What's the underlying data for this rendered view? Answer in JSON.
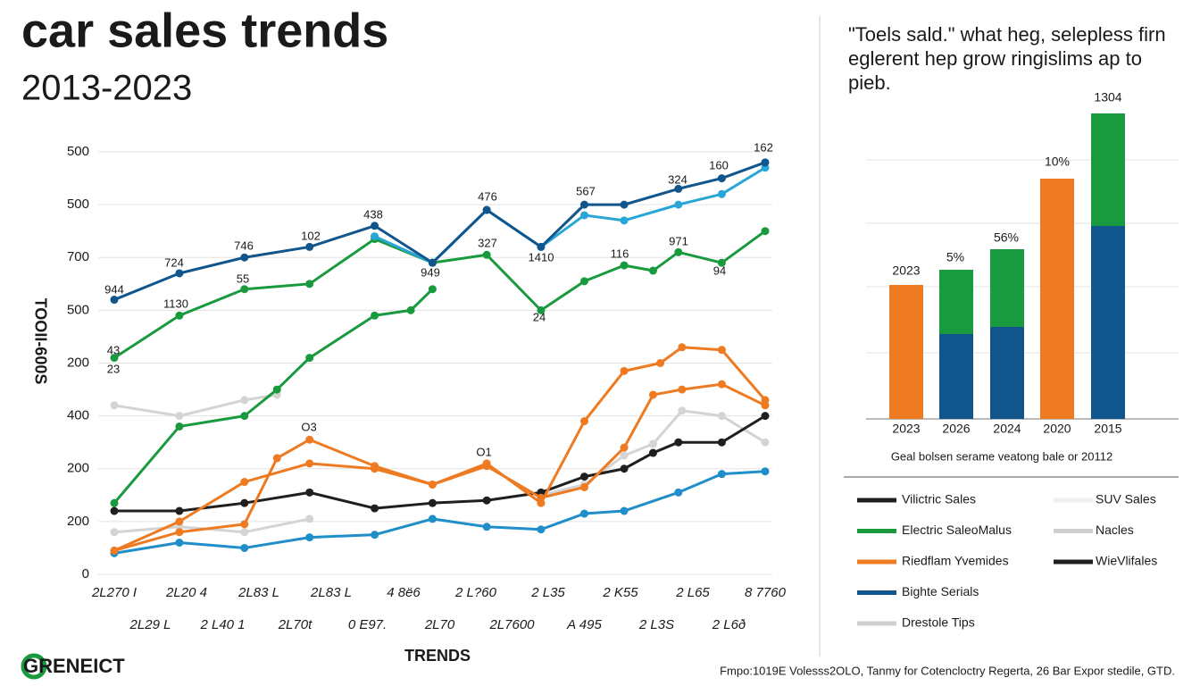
{
  "chart_data": [
    {
      "type": "line",
      "title": "car sales trends",
      "subtitle": "2013-2023",
      "xlabel": "TRENDS",
      "ylabel": "TOOII-600S",
      "xlim": [
        0,
        18
      ],
      "xticks": [
        {
          "value": 0,
          "label": "2L270 I"
        },
        {
          "value": 1,
          "label": "2L29 L"
        },
        {
          "value": 2,
          "label": "2L20 4"
        },
        {
          "value": 3,
          "label": "2 L40 1"
        },
        {
          "value": 4,
          "label": "2L83 L"
        },
        {
          "value": 5,
          "label": "2L70t"
        },
        {
          "value": 6,
          "label": "2L83 L"
        },
        {
          "value": 7,
          "label": "0 E97."
        },
        {
          "value": 8,
          "label": "4 8ë6"
        },
        {
          "value": 9,
          "label": "2L70"
        },
        {
          "value": 10,
          "label": "2 L?60"
        },
        {
          "value": 11,
          "label": "2L7600"
        },
        {
          "value": 12,
          "label": "2 L35"
        },
        {
          "value": 13,
          "label": "A 495"
        },
        {
          "value": 14,
          "label": "2 K55"
        },
        {
          "value": 15,
          "label": "2 L3S"
        },
        {
          "value": 16,
          "label": "2 L65"
        },
        {
          "value": 17,
          "label": "2 L6ð"
        },
        {
          "value": 18,
          "label": "8 7760"
        }
      ],
      "ylim": [
        0,
        8
      ],
      "yticks": [
        0,
        {
          "value": 1,
          "label": "200"
        },
        {
          "value": 2,
          "label": "200"
        },
        {
          "value": 3,
          "label": "400"
        },
        {
          "value": 4,
          "label": "200"
        },
        {
          "value": 5,
          "label": "500"
        },
        {
          "value": 6,
          "label": "700"
        },
        {
          "value": 7,
          "label": "500"
        },
        {
          "value": 8,
          "label": "500"
        }
      ],
      "grid": true,
      "series": [
        {
          "color": "#d4d4d4",
          "x": [
            0,
            1.8,
            3.6,
            4.5
          ],
          "values": [
            3.2,
            3,
            3.3,
            3.4
          ]
        },
        {
          "color": "#d4d4d4",
          "x": [
            0,
            1.8,
            3.6,
            5.4
          ],
          "values": [
            0.8,
            0.9,
            0.8,
            1.05
          ]
        },
        {
          "color": "#d4d4d4",
          "x": [
            11.8,
            13,
            14.1,
            14.9,
            15.7,
            16.8,
            18
          ],
          "values": [
            1.5,
            1.7,
            2.25,
            2.47,
            3.1,
            3.0,
            2.5
          ]
        },
        {
          "color": "#1a9a3e",
          "x": [
            0,
            1.8,
            3.6,
            4.5,
            5.4,
            7.2,
            8.2,
            8.8
          ],
          "values": [
            1.35,
            2.8,
            3.0,
            3.5,
            4.1,
            4.9,
            5.0,
            5.4
          ]
        },
        {
          "color": "#1a9a3e",
          "x": [
            0,
            1.8,
            3.6,
            5.4,
            7.2,
            8.8,
            10.3,
            11.8,
            13,
            14.1,
            14.9,
            15.6,
            16.8,
            18
          ],
          "values": [
            4.1,
            4.9,
            5.4,
            5.5,
            6.35,
            5.9,
            6.05,
            5.0,
            5.55,
            5.85,
            5.75,
            6.1,
            5.9,
            6.5
          ]
        },
        {
          "color": "#29a6d6",
          "x": [
            7.2,
            8.8,
            10.3,
            11.8,
            13,
            14.1,
            15.6,
            16.8,
            18
          ],
          "values": [
            6.4,
            5.9,
            6.9,
            6.2,
            6.8,
            6.7,
            7,
            7.2,
            7.7
          ]
        },
        {
          "color": "#10558c",
          "x": [
            0,
            1.8,
            3.6,
            5.4,
            7.2,
            8.8,
            10.3,
            11.8,
            13,
            14.1,
            15.6,
            16.8,
            18
          ],
          "values": [
            5.2,
            5.7,
            6,
            6.2,
            6.6,
            5.9,
            6.9,
            6.2,
            7,
            7,
            7.3,
            7.5,
            7.8
          ]
        },
        {
          "color": "#1f1f1f",
          "x": [
            0,
            1.8,
            3.6,
            5.4,
            7.2,
            8.8,
            10.3,
            11.8,
            13,
            14.1,
            14.9,
            15.6,
            16.8,
            18
          ],
          "values": [
            1.2,
            1.2,
            1.35,
            1.55,
            1.25,
            1.35,
            1.4,
            1.55,
            1.85,
            2,
            2.3,
            2.5,
            2.5,
            3
          ]
        },
        {
          "color": "#1f8ec9",
          "x": [
            0,
            1.8,
            3.6,
            5.4,
            7.2,
            8.8,
            10.3,
            11.8,
            13,
            14.1,
            15.6,
            16.8,
            18
          ],
          "values": [
            0.4,
            0.6,
            0.5,
            0.7,
            0.75,
            1.05,
            0.9,
            0.85,
            1.15,
            1.2,
            1.55,
            1.9,
            1.95
          ]
        },
        {
          "color": "#ee7a22",
          "x": [
            0,
            1.8,
            3.6,
            5.4,
            7.2,
            8.8,
            10.3,
            11.8,
            13,
            14.1,
            15.1,
            15.7,
            16.8,
            18
          ],
          "values": [
            0.45,
            1.0,
            1.75,
            2.1,
            2.0,
            1.7,
            2.1,
            1.35,
            2.9,
            3.85,
            4.0,
            4.3,
            4.25,
            3.3
          ]
        },
        {
          "color": "#ee7a22",
          "x": [
            0,
            1.8,
            3.6,
            4.5,
            5.4,
            7.2,
            8.8,
            10.3,
            11.8,
            13,
            14.1,
            14.9,
            15.7,
            16.8,
            18
          ],
          "values": [
            0.45,
            0.8,
            0.95,
            2.2,
            2.55,
            2.05,
            1.7,
            2.05,
            1.45,
            1.65,
            2.4,
            3.4,
            3.5,
            3.6,
            3.2
          ]
        }
      ],
      "annotations": [
        "944",
        "724",
        "746",
        "102",
        "438",
        "476",
        "567",
        "324",
        "160",
        "162",
        "55",
        "1130",
        "43",
        "23",
        "949",
        "327",
        "1410",
        "24",
        "116",
        "971",
        "94",
        "O3",
        "O1"
      ]
    },
    {
      "type": "bar",
      "stacked": true,
      "title_lines": [
        "\"Toels sald.\" what heg, selepless firn",
        "eglerent hep grow ringislims ap to",
        "pieb."
      ],
      "categories": [
        "2023",
        "2026",
        "2024",
        "2020",
        "2015"
      ],
      "ylim": [
        0,
        350
      ],
      "series": [
        {
          "color": "#ee7a22",
          "values": [
            150,
            null,
            null,
            269,
            null
          ]
        },
        {
          "color": "#10558c",
          "values": [
            null,
            95,
            103,
            null,
            216
          ]
        },
        {
          "color": "#1a9a3e",
          "values": [
            null,
            72,
            87,
            null,
            126
          ]
        }
      ],
      "annotations": [
        "2023",
        "5%",
        "56%",
        "10%",
        "1304"
      ],
      "caption": "Geal bolsen serame veatong bale or 20112"
    }
  ],
  "legend": [
    {
      "name": "Vilictric Sales",
      "color": "#1f1f1f"
    },
    {
      "name": "Electric SaleoMalus",
      "color": "#1a9a3e"
    },
    {
      "name": "Riedflam Yvemides",
      "color": "#ee7a22"
    },
    {
      "name": "Bighte Serials",
      "color": "#10558c"
    },
    {
      "name": "Drestole Tips",
      "color": "#cfcfcf"
    },
    {
      "name": "SUV Sales",
      "color": "#f0f0f0"
    },
    {
      "name": "Nacles",
      "color": "#cfcfcf"
    },
    {
      "name": "WieVlifales",
      "color": "#1f1f1f"
    }
  ],
  "brand": "GRENEICT",
  "source": "Fmpo:1019E Volesss2OLO, Tanmy for Cotencloctry Regerta, 26 Bar Expor stedile, GTD."
}
